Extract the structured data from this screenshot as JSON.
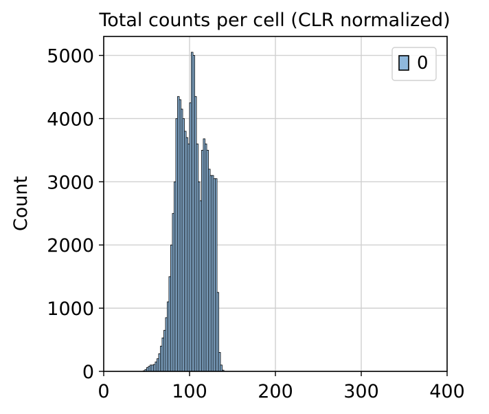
{
  "chart_data": {
    "type": "bar",
    "title": "Total counts per cell (CLR normalized)",
    "xlabel": "",
    "ylabel": "Count",
    "xlim": [
      0,
      400
    ],
    "ylim": [
      0,
      5300
    ],
    "xticks": [
      0,
      100,
      200,
      300,
      400
    ],
    "yticks": [
      0,
      1000,
      2000,
      3000,
      4000,
      5000
    ],
    "grid": true,
    "legend": {
      "position": "top-right",
      "entries": [
        "0"
      ]
    },
    "bar_color": "#8fb8dc",
    "edge_color": "#000000",
    "bin_width": 2.05,
    "series": [
      {
        "name": "0",
        "bins": [
          [
            47,
            10
          ],
          [
            49,
            30
          ],
          [
            51,
            60
          ],
          [
            53,
            80
          ],
          [
            55,
            100
          ],
          [
            57,
            100
          ],
          [
            59,
            110
          ],
          [
            61,
            150
          ],
          [
            63,
            200
          ],
          [
            65,
            280
          ],
          [
            67,
            400
          ],
          [
            69,
            530
          ],
          [
            71,
            650
          ],
          [
            73,
            850
          ],
          [
            75,
            1100
          ],
          [
            77,
            1500
          ],
          [
            79,
            2000
          ],
          [
            81,
            2500
          ],
          [
            83,
            3000
          ],
          [
            85,
            4000
          ],
          [
            87,
            4350
          ],
          [
            89,
            4300
          ],
          [
            91,
            4150
          ],
          [
            93,
            4000
          ],
          [
            95,
            3800
          ],
          [
            97,
            3700
          ],
          [
            99,
            3600
          ],
          [
            101,
            4250
          ],
          [
            103,
            5050
          ],
          [
            105,
            5000
          ],
          [
            107,
            4350
          ],
          [
            109,
            3600
          ],
          [
            111,
            3000
          ],
          [
            113,
            2700
          ],
          [
            115,
            3500
          ],
          [
            117,
            3680
          ],
          [
            119,
            3600
          ],
          [
            121,
            3500
          ],
          [
            123,
            3200
          ],
          [
            125,
            3100
          ],
          [
            127,
            3100
          ],
          [
            129,
            3050
          ],
          [
            131,
            3050
          ],
          [
            133,
            1250
          ],
          [
            135,
            300
          ],
          [
            137,
            100
          ],
          [
            139,
            20
          ]
        ]
      }
    ]
  }
}
